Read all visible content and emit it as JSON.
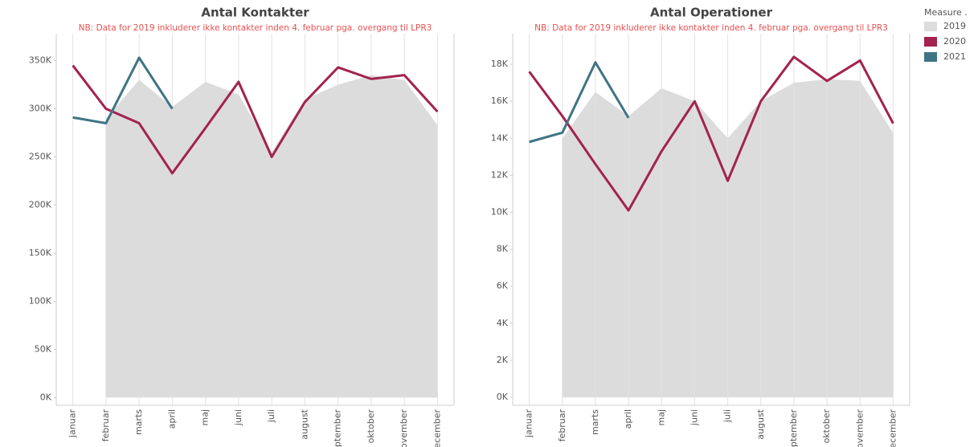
{
  "legend_title": "Measure .",
  "chart_data": [
    {
      "type": "line",
      "title": "Antal Kontakter",
      "subtitle": "NB: Data for 2019 inkluderer ikke kontakter inden 4. februar pga. overgang til LPR3",
      "categories": [
        "januar",
        "februar",
        "marts",
        "april",
        "maj",
        "juni",
        "juli",
        "august",
        "september",
        "oktober",
        "november",
        "december"
      ],
      "ylim": [
        -8000,
        388000
      ],
      "yticks": [
        {
          "value": 0,
          "label": "0K"
        },
        {
          "value": 50000,
          "label": "50K"
        },
        {
          "value": 100000,
          "label": "100K"
        },
        {
          "value": 150000,
          "label": "150K"
        },
        {
          "value": 200000,
          "label": "200K"
        },
        {
          "value": 250000,
          "label": "250K"
        },
        {
          "value": 300000,
          "label": "300K"
        },
        {
          "value": 350000,
          "label": "350K"
        }
      ],
      "series": [
        {
          "name": "2019",
          "color": "#dcdcdc",
          "style": "area",
          "values": [
            null,
            290000,
            330000,
            302000,
            328000,
            315000,
            255000,
            310000,
            325000,
            335000,
            330000,
            283000
          ]
        },
        {
          "name": "2020",
          "color": "#a3224f",
          "style": "line",
          "values": [
            345000,
            300000,
            285000,
            233000,
            280000,
            328000,
            250000,
            307000,
            343000,
            331000,
            335000,
            297000
          ]
        },
        {
          "name": "2021",
          "color": "#3f7484",
          "style": "line",
          "values": [
            291000,
            285000,
            353000,
            300000,
            null,
            null,
            null,
            null,
            null,
            null,
            null,
            null
          ]
        }
      ]
    },
    {
      "type": "line",
      "title": "Antal Operationer",
      "subtitle": "NB: Data for 2019 inkluderer ikke kontakter inden 4. februar pga. overgang til LPR3",
      "categories": [
        "januar",
        "februar",
        "marts",
        "april",
        "maj",
        "juni",
        "juli",
        "august",
        "september",
        "oktober",
        "november",
        "december"
      ],
      "ylim": [
        -430,
        20170
      ],
      "yticks": [
        {
          "value": 0,
          "label": "0K"
        },
        {
          "value": 2000,
          "label": "2K"
        },
        {
          "value": 4000,
          "label": "4K"
        },
        {
          "value": 6000,
          "label": "6K"
        },
        {
          "value": 8000,
          "label": "8K"
        },
        {
          "value": 10000,
          "label": "10K"
        },
        {
          "value": 12000,
          "label": "12K"
        },
        {
          "value": 14000,
          "label": "14K"
        },
        {
          "value": 16000,
          "label": "16K"
        },
        {
          "value": 18000,
          "label": "18K"
        }
      ],
      "series": [
        {
          "name": "2019",
          "color": "#dcdcdc",
          "style": "area",
          "values": [
            null,
            14000,
            16500,
            15200,
            16700,
            16000,
            14000,
            16000,
            17000,
            17200,
            17100,
            14300
          ]
        },
        {
          "name": "2020",
          "color": "#a3224f",
          "style": "line",
          "values": [
            17600,
            15200,
            12600,
            10100,
            13300,
            16000,
            11700,
            16000,
            18400,
            17100,
            18200,
            14800
          ]
        },
        {
          "name": "2021",
          "color": "#3f7484",
          "style": "line",
          "values": [
            13800,
            14300,
            18100,
            15100,
            null,
            null,
            null,
            null,
            null,
            null,
            null,
            null
          ]
        }
      ]
    }
  ]
}
